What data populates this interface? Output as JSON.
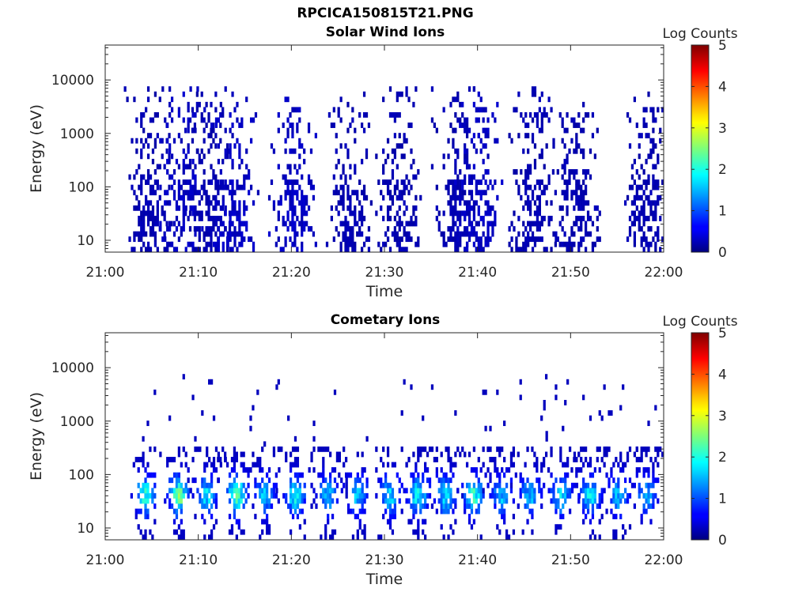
{
  "figure": {
    "title": "RPCICA150815T21.PNG"
  },
  "chart_data": [
    {
      "type": "heatmap",
      "title": "Solar Wind Ions",
      "xlabel": "Time",
      "ylabel": "Energy (eV)",
      "x_range": [
        "21:00",
        "22:00"
      ],
      "x_ticks": [
        "21:00",
        "21:10",
        "21:20",
        "21:30",
        "21:40",
        "21:50",
        "22:00"
      ],
      "y_scale": "log",
      "y_range": [
        6,
        45000
      ],
      "y_ticks": [
        "10",
        "100",
        "1000",
        "10000"
      ],
      "colorbar": {
        "label": "Log Counts",
        "range": [
          0,
          5
        ],
        "ticks": [
          "0",
          "1",
          "2",
          "3",
          "4",
          "5"
        ],
        "colormap": "jet"
      },
      "bursts": [
        {
          "center_min": 4.5,
          "peak_log_counts": 0.3
        },
        {
          "center_min": 8.3,
          "peak_log_counts": 0.4
        },
        {
          "center_min": 11.0,
          "peak_log_counts": 0.3
        },
        {
          "center_min": 13.8,
          "peak_log_counts": 0.4
        },
        {
          "center_min": 20.0,
          "peak_log_counts": 0.4
        },
        {
          "center_min": 26.2,
          "peak_log_counts": 0.3
        },
        {
          "center_min": 31.5,
          "peak_log_counts": 0.3
        },
        {
          "center_min": 37.5,
          "peak_log_counts": 0.3
        },
        {
          "center_min": 40.0,
          "peak_log_counts": 0.4
        },
        {
          "center_min": 45.8,
          "peak_log_counts": 0.3
        },
        {
          "center_min": 50.5,
          "peak_log_counts": 0.3
        },
        {
          "center_min": 58.0,
          "peak_log_counts": 0.3
        }
      ]
    },
    {
      "type": "heatmap",
      "title": "Cometary Ions",
      "xlabel": "Time",
      "ylabel": "Energy (eV)",
      "x_range": [
        "21:00",
        "22:00"
      ],
      "x_ticks": [
        "21:00",
        "21:10",
        "21:20",
        "21:30",
        "21:40",
        "21:50",
        "22:00"
      ],
      "y_scale": "log",
      "y_range": [
        6,
        45000
      ],
      "y_ticks": [
        "10",
        "100",
        "1000",
        "10000"
      ],
      "colorbar": {
        "label": "Log Counts",
        "range": [
          0,
          5
        ],
        "ticks": [
          "0",
          "1",
          "2",
          "3",
          "4",
          "5"
        ],
        "colormap": "jet"
      },
      "bursts": [
        {
          "center_min": 4.2,
          "peak_log_counts": 2.2
        },
        {
          "center_min": 7.8,
          "peak_log_counts": 2.6
        },
        {
          "center_min": 10.8,
          "peak_log_counts": 1.8
        },
        {
          "center_min": 14.0,
          "peak_log_counts": 2.6
        },
        {
          "center_min": 17.0,
          "peak_log_counts": 1.6
        },
        {
          "center_min": 20.3,
          "peak_log_counts": 2.0
        },
        {
          "center_min": 23.8,
          "peak_log_counts": 1.6
        },
        {
          "center_min": 27.0,
          "peak_log_counts": 1.6
        },
        {
          "center_min": 30.5,
          "peak_log_counts": 1.8
        },
        {
          "center_min": 33.5,
          "peak_log_counts": 2.0
        },
        {
          "center_min": 36.5,
          "peak_log_counts": 1.8
        },
        {
          "center_min": 39.5,
          "peak_log_counts": 2.2
        },
        {
          "center_min": 42.5,
          "peak_log_counts": 1.6
        },
        {
          "center_min": 45.5,
          "peak_log_counts": 1.6
        },
        {
          "center_min": 48.8,
          "peak_log_counts": 1.8
        },
        {
          "center_min": 52.0,
          "peak_log_counts": 1.8
        },
        {
          "center_min": 55.0,
          "peak_log_counts": 1.6
        },
        {
          "center_min": 58.0,
          "peak_log_counts": 1.6
        }
      ]
    }
  ]
}
